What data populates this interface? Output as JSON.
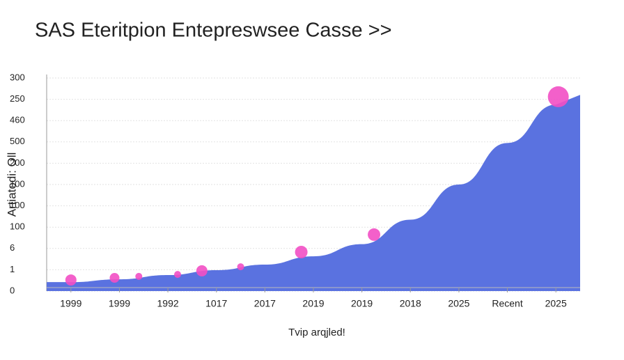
{
  "chart_data": {
    "type": "area",
    "title": "SAS Eteritpion Entepreswsee Casse >>",
    "x_label": "Tvip arqjled!",
    "y_label": "Artiatodi: Oll",
    "categories": [
      "1999",
      "1999",
      "1992",
      "1017",
      "2017",
      "2019",
      "2019",
      "2018",
      "2025",
      "Recent",
      "2025"
    ],
    "ylim": [
      0,
      10
    ],
    "yticks": [
      {
        "value": 0,
        "label": "0"
      },
      {
        "value": 1,
        "label": "1"
      },
      {
        "value": 2,
        "label": "6"
      },
      {
        "value": 3,
        "label": "100"
      },
      {
        "value": 4,
        "label": "100"
      },
      {
        "value": 5,
        "label": "100"
      },
      {
        "value": 6,
        "label": "200"
      },
      {
        "value": 7,
        "label": "500"
      },
      {
        "value": 8,
        "label": "460"
      },
      {
        "value": 9,
        "label": "250"
      },
      {
        "value": 10,
        "label": "300"
      }
    ],
    "grid": true,
    "series": [
      {
        "color": "#5a72e0",
        "values": [
          0.42,
          0.55,
          0.75,
          0.98,
          1.24,
          1.63,
          2.2,
          3.35,
          5.0,
          6.95,
          8.75
        ]
      }
    ],
    "bubbles": {
      "color": "#f24fc4",
      "x": [
        0,
        0.9,
        1.4,
        2.2,
        2.7,
        3.5,
        4.75,
        6.25,
        10.05
      ],
      "values": [
        0.52,
        0.62,
        0.69,
        0.78,
        0.95,
        1.14,
        1.83,
        2.65,
        9.12
      ],
      "sizes": [
        8,
        7,
        5,
        5,
        8,
        5,
        9,
        9,
        15
      ]
    }
  }
}
